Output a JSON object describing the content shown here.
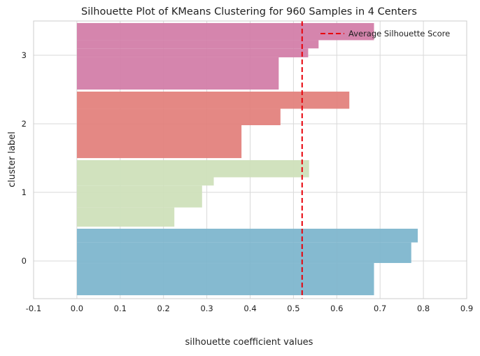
{
  "chart_data": {
    "type": "bar",
    "orientation": "horizontal",
    "title": "Silhouette Plot of KMeans Clustering for 960 Samples in 4 Centers",
    "xlabel": "silhouette coefficient values",
    "ylabel": "cluster label",
    "xlim": [
      -0.1,
      0.9
    ],
    "ylim": [
      -0.55,
      3.5
    ],
    "xticks": [
      "-0.1",
      "0.0",
      "0.1",
      "0.2",
      "0.3",
      "0.4",
      "0.5",
      "0.6",
      "0.7",
      "0.8",
      "0.9"
    ],
    "yticks": [
      "0",
      "1",
      "2",
      "3"
    ],
    "grid": true,
    "legend_position": "top-right",
    "average_silhouette_score": 0.52,
    "average_line_color": "#e8000b",
    "legend": [
      {
        "label": "Average Silhouette Score",
        "style": "dashed",
        "color": "#e8000b"
      }
    ],
    "clusters": [
      {
        "label": "0",
        "color": "#7eb6ce",
        "y_range": [
          -0.5,
          0.47
        ],
        "steps": [
          {
            "from": -0.5,
            "to": -0.03,
            "value": 0.686
          },
          {
            "from": -0.03,
            "to": 0.27,
            "value": 0.772
          },
          {
            "from": 0.27,
            "to": 0.47,
            "value": 0.787
          }
        ]
      },
      {
        "label": "1",
        "color": "#cfe0bb",
        "y_range": [
          0.5,
          1.47
        ],
        "steps": [
          {
            "from": 0.5,
            "to": 0.78,
            "value": 0.225
          },
          {
            "from": 0.78,
            "to": 1.1,
            "value": 0.289
          },
          {
            "from": 1.1,
            "to": 1.22,
            "value": 0.316
          },
          {
            "from": 1.22,
            "to": 1.47,
            "value": 0.536
          }
        ]
      },
      {
        "label": "2",
        "color": "#e3827d",
        "y_range": [
          1.5,
          2.47
        ],
        "steps": [
          {
            "from": 1.5,
            "to": 1.98,
            "value": 0.38
          },
          {
            "from": 1.98,
            "to": 2.22,
            "value": 0.47
          },
          {
            "from": 2.22,
            "to": 2.47,
            "value": 0.629
          }
        ]
      },
      {
        "label": "3",
        "color": "#d37ea9",
        "y_range": [
          2.5,
          3.47
        ],
        "steps": [
          {
            "from": 2.5,
            "to": 2.97,
            "value": 0.466
          },
          {
            "from": 2.97,
            "to": 3.1,
            "value": 0.534
          },
          {
            "from": 3.1,
            "to": 3.22,
            "value": 0.558
          },
          {
            "from": 3.22,
            "to": 3.47,
            "value": 0.686
          }
        ]
      }
    ]
  }
}
